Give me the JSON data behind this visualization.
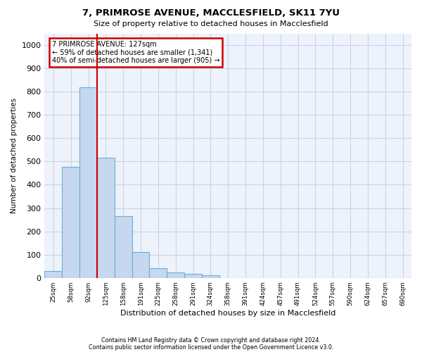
{
  "title": "7, PRIMROSE AVENUE, MACCLESFIELD, SK11 7YU",
  "subtitle": "Size of property relative to detached houses in Macclesfield",
  "xlabel": "Distribution of detached houses by size in Macclesfield",
  "ylabel": "Number of detached properties",
  "footnote1": "Contains HM Land Registry data © Crown copyright and database right 2024.",
  "footnote2": "Contains public sector information licensed under the Open Government Licence v3.0.",
  "bar_color": "#c5d8ef",
  "bar_edge_color": "#6baed6",
  "grid_color": "#c8d4e8",
  "background_color": "#eef2fa",
  "annotation_box_color": "#cc0000",
  "annotation_text": "7 PRIMROSE AVENUE: 127sqm\n← 59% of detached houses are smaller (1,341)\n40% of semi-detached houses are larger (905) →",
  "property_line_idx": 3,
  "ylim": [
    0,
    1050
  ],
  "categories": [
    "25sqm",
    "58sqm",
    "92sqm",
    "125sqm",
    "158sqm",
    "191sqm",
    "225sqm",
    "258sqm",
    "291sqm",
    "324sqm",
    "358sqm",
    "391sqm",
    "424sqm",
    "457sqm",
    "491sqm",
    "524sqm",
    "557sqm",
    "590sqm",
    "624sqm",
    "657sqm",
    "690sqm"
  ],
  "bar_heights": [
    30,
    478,
    820,
    515,
    265,
    110,
    40,
    22,
    17,
    12,
    0,
    0,
    0,
    0,
    0,
    0,
    0,
    0,
    0,
    0,
    0
  ],
  "yticks": [
    0,
    100,
    200,
    300,
    400,
    500,
    600,
    700,
    800,
    900,
    1000
  ]
}
